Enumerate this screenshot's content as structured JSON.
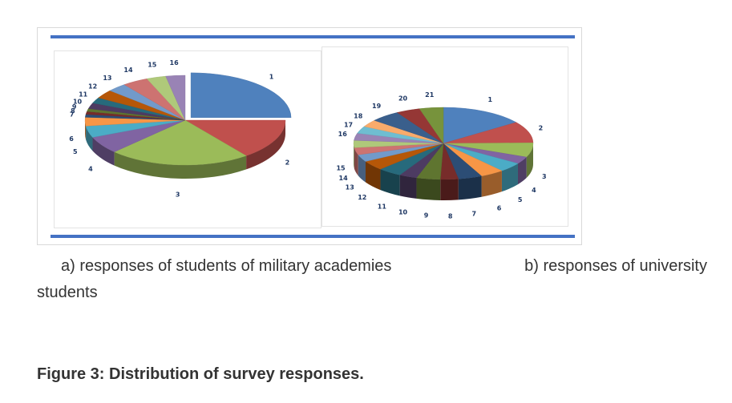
{
  "figure": {
    "caption_a": "a) responses of students of military academies",
    "caption_b": "b) responses of university",
    "caption_wrap": "students",
    "title": "Figure 3: Distribution of survey responses."
  },
  "colors": {
    "rule": "#4472c4",
    "palette": [
      "#4f81bd",
      "#c0504d",
      "#9bbb59",
      "#8064a2",
      "#4bacc6",
      "#f79646",
      "#2c4d75",
      "#772c2a",
      "#5f7530",
      "#4d3b62",
      "#276a7c",
      "#b65708",
      "#729aca",
      "#cd7371",
      "#afc97a",
      "#9983b5",
      "#6fbdd1",
      "#f9ab6b",
      "#3a5f8c",
      "#953735",
      "#77933c"
    ]
  },
  "chart_data": [
    {
      "type": "pie",
      "title": "",
      "style": "3d-exploded",
      "labels": [
        "1",
        "2",
        "3",
        "4",
        "5",
        "6",
        "7",
        "8",
        "9",
        "10",
        "11",
        "12",
        "13",
        "14",
        "15",
        "16"
      ],
      "values": [
        24,
        14,
        22,
        6,
        4,
        3,
        1,
        1,
        1,
        2,
        2,
        3,
        3,
        4,
        3,
        3
      ]
    },
    {
      "type": "pie",
      "title": "",
      "style": "3d",
      "labels": [
        "1",
        "2",
        "3",
        "4",
        "5",
        "6",
        "7",
        "8",
        "9",
        "10",
        "11",
        "12",
        "13",
        "14",
        "15",
        "16",
        "17",
        "18",
        "19",
        "20",
        "21"
      ],
      "values": [
        14,
        9,
        6,
        3,
        4,
        4,
        4,
        3,
        4,
        3,
        4,
        4,
        3,
        3,
        3,
        3,
        3,
        3,
        5,
        4,
        4
      ]
    }
  ]
}
